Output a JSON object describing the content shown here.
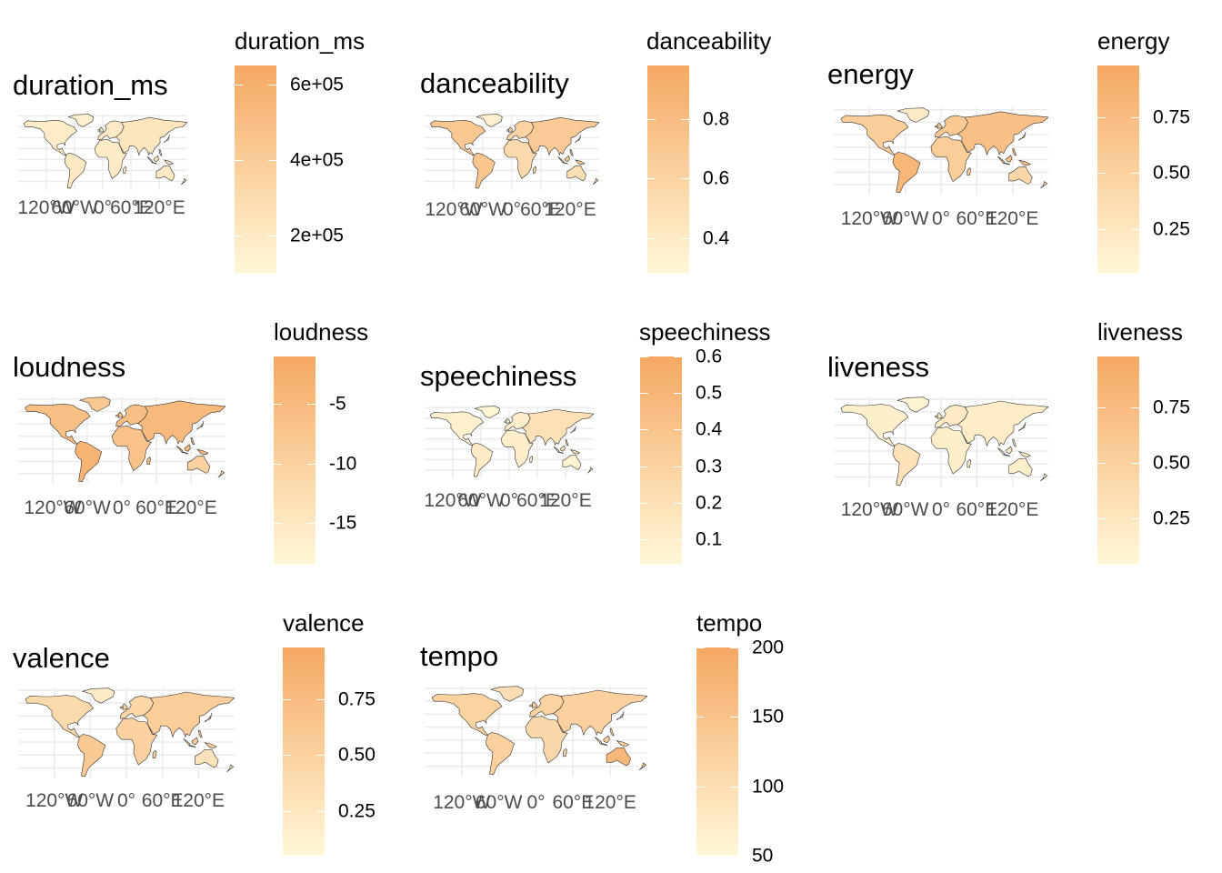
{
  "chart_data": [
    {
      "type": "choropleth-map",
      "title": "duration_ms",
      "legend_title": "duration_ms",
      "x_tick_labels": [
        "120°W",
        "60°W",
        "0°",
        "60°E",
        "120°E"
      ],
      "fill_range": [
        100000,
        650000
      ],
      "fill_ticks": [
        {
          "label": "2e+05",
          "value": 200000
        },
        {
          "label": "4e+05",
          "value": 400000
        },
        {
          "label": "6e+05",
          "value": 600000
        }
      ],
      "colors": {
        "low": "#fff8d9",
        "high": "#f5a862"
      },
      "regions": [
        {
          "name": "North America",
          "value": 180000
        },
        {
          "name": "Greenland",
          "value": 150000
        },
        {
          "name": "South America",
          "value": 210000
        },
        {
          "name": "Europe",
          "value": 200000
        },
        {
          "name": "Africa",
          "value": 190000
        },
        {
          "name": "Asia",
          "value": 230000
        },
        {
          "name": "Australia",
          "value": 200000
        }
      ]
    },
    {
      "type": "choropleth-map",
      "title": "danceability",
      "legend_title": "danceability",
      "x_tick_labels": [
        "120°W",
        "60°W",
        "0°",
        "60°E",
        "120°E"
      ],
      "fill_range": [
        0.28,
        0.98
      ],
      "fill_ticks": [
        {
          "label": "0.4",
          "value": 0.4
        },
        {
          "label": "0.6",
          "value": 0.6
        },
        {
          "label": "0.8",
          "value": 0.8
        }
      ],
      "colors": {
        "low": "#fff8d9",
        "high": "#f5a862"
      },
      "regions": [
        {
          "name": "North America",
          "value": 0.7
        },
        {
          "name": "Greenland",
          "value": 0.35
        },
        {
          "name": "South America",
          "value": 0.72
        },
        {
          "name": "Europe",
          "value": 0.6
        },
        {
          "name": "Africa",
          "value": 0.55
        },
        {
          "name": "Asia",
          "value": 0.68
        },
        {
          "name": "Australia",
          "value": 0.5
        }
      ]
    },
    {
      "type": "choropleth-map",
      "title": "energy",
      "legend_title": "energy",
      "x_tick_labels": [
        "120°W",
        "60°W",
        "0°",
        "60°E",
        "120°E"
      ],
      "fill_range": [
        0.05,
        0.98
      ],
      "fill_ticks": [
        {
          "label": "0.25",
          "value": 0.25
        },
        {
          "label": "0.50",
          "value": 0.5
        },
        {
          "label": "0.75",
          "value": 0.75
        }
      ],
      "colors": {
        "low": "#fff8d9",
        "high": "#f5a862"
      },
      "regions": [
        {
          "name": "North America",
          "value": 0.55
        },
        {
          "name": "Greenland",
          "value": 0.2
        },
        {
          "name": "South America",
          "value": 0.8
        },
        {
          "name": "Europe",
          "value": 0.6
        },
        {
          "name": "Africa",
          "value": 0.55
        },
        {
          "name": "Asia",
          "value": 0.7
        },
        {
          "name": "Australia",
          "value": 0.45
        }
      ]
    },
    {
      "type": "choropleth-map",
      "title": "loudness",
      "legend_title": "loudness",
      "x_tick_labels": [
        "120°W",
        "60°W",
        "0°",
        "60°E",
        "120°E"
      ],
      "fill_range": [
        -18.5,
        -1.0
      ],
      "fill_ticks": [
        {
          "label": "-15",
          "value": -15
        },
        {
          "label": "-10",
          "value": -10
        },
        {
          "label": "-5",
          "value": -5
        }
      ],
      "colors": {
        "low": "#fff8d9",
        "high": "#f5a862"
      },
      "regions": [
        {
          "name": "North America",
          "value": -6
        },
        {
          "name": "Greenland",
          "value": -8
        },
        {
          "name": "South America",
          "value": -3.5
        },
        {
          "name": "Europe",
          "value": -6
        },
        {
          "name": "Africa",
          "value": -7
        },
        {
          "name": "Asia",
          "value": -5
        },
        {
          "name": "Australia",
          "value": -10
        }
      ]
    },
    {
      "type": "choropleth-map",
      "title": "speechiness",
      "legend_title": "speechiness",
      "x_tick_labels": [
        "120°W",
        "60°W",
        "0°",
        "60°E",
        "120°E"
      ],
      "fill_range": [
        0.03,
        0.6
      ],
      "fill_ticks": [
        {
          "label": "0.1",
          "value": 0.1
        },
        {
          "label": "0.2",
          "value": 0.2
        },
        {
          "label": "0.3",
          "value": 0.3
        },
        {
          "label": "0.4",
          "value": 0.4
        },
        {
          "label": "0.5",
          "value": 0.5
        },
        {
          "label": "0.6",
          "value": 0.6
        }
      ],
      "colors": {
        "low": "#fff8d9",
        "high": "#f5a862"
      },
      "regions": [
        {
          "name": "North America",
          "value": 0.08
        },
        {
          "name": "Greenland",
          "value": 0.05
        },
        {
          "name": "South America",
          "value": 0.12
        },
        {
          "name": "Europe",
          "value": 0.1
        },
        {
          "name": "Africa",
          "value": 0.1
        },
        {
          "name": "Asia",
          "value": 0.2
        },
        {
          "name": "Australia",
          "value": 0.07
        }
      ]
    },
    {
      "type": "choropleth-map",
      "title": "liveness",
      "legend_title": "liveness",
      "x_tick_labels": [
        "120°W",
        "60°W",
        "0°",
        "60°E",
        "120°E"
      ],
      "fill_range": [
        0.04,
        0.98
      ],
      "fill_ticks": [
        {
          "label": "0.25",
          "value": 0.25
        },
        {
          "label": "0.50",
          "value": 0.5
        },
        {
          "label": "0.75",
          "value": 0.75
        }
      ],
      "colors": {
        "low": "#fff8d9",
        "high": "#f5a862"
      },
      "regions": [
        {
          "name": "North America",
          "value": 0.15
        },
        {
          "name": "Greenland",
          "value": 0.1
        },
        {
          "name": "South America",
          "value": 0.3
        },
        {
          "name": "Europe",
          "value": 0.2
        },
        {
          "name": "Africa",
          "value": 0.15
        },
        {
          "name": "Asia",
          "value": 0.18
        },
        {
          "name": "Australia",
          "value": 0.15
        }
      ]
    },
    {
      "type": "choropleth-map",
      "title": "valence",
      "legend_title": "valence",
      "x_tick_labels": [
        "120°W",
        "60°W",
        "0°",
        "60°E",
        "120°E"
      ],
      "fill_range": [
        0.05,
        0.98
      ],
      "fill_ticks": [
        {
          "label": "0.25",
          "value": 0.25
        },
        {
          "label": "0.50",
          "value": 0.5
        },
        {
          "label": "0.75",
          "value": 0.75
        }
      ],
      "colors": {
        "low": "#fff8d9",
        "high": "#f5a862"
      },
      "regions": [
        {
          "name": "North America",
          "value": 0.4
        },
        {
          "name": "Greenland",
          "value": 0.2
        },
        {
          "name": "South America",
          "value": 0.6
        },
        {
          "name": "Europe",
          "value": 0.45
        },
        {
          "name": "Africa",
          "value": 0.5
        },
        {
          "name": "Asia",
          "value": 0.55
        },
        {
          "name": "Australia",
          "value": 0.3
        }
      ]
    },
    {
      "type": "choropleth-map",
      "title": "tempo",
      "legend_title": "tempo",
      "x_tick_labels": [
        "120°W",
        "60°W",
        "0°",
        "60°E",
        "120°E"
      ],
      "fill_range": [
        50,
        200
      ],
      "fill_ticks": [
        {
          "label": "50",
          "value": 50
        },
        {
          "label": "100",
          "value": 100
        },
        {
          "label": "150",
          "value": 150
        },
        {
          "label": "200",
          "value": 200
        }
      ],
      "colors": {
        "low": "#fff8d9",
        "high": "#f5a862"
      },
      "regions": [
        {
          "name": "North America",
          "value": 120
        },
        {
          "name": "Greenland",
          "value": 100
        },
        {
          "name": "South America",
          "value": 125
        },
        {
          "name": "Europe",
          "value": 120
        },
        {
          "name": "Africa",
          "value": 110
        },
        {
          "name": "Asia",
          "value": 125
        },
        {
          "name": "Australia",
          "value": 170
        }
      ]
    }
  ]
}
